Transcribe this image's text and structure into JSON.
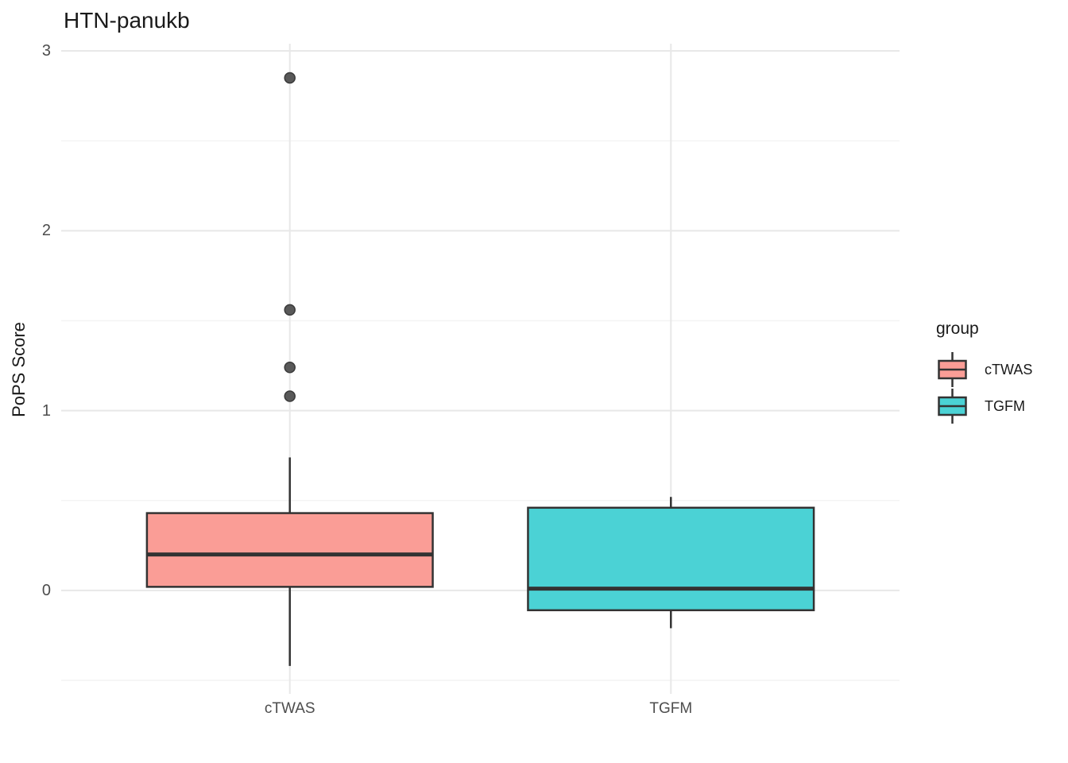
{
  "title": "HTN-panukb",
  "y_axis": {
    "label": "PoPS Score",
    "ticks": [
      "0",
      "1",
      "2",
      "3"
    ]
  },
  "x_axis": {
    "labels": [
      "cTWAS",
      "TGFM"
    ]
  },
  "legend": {
    "title": "group",
    "entries": [
      {
        "label": "cTWAS",
        "color": "#FA9D96"
      },
      {
        "label": "TGFM",
        "color": "#4BD2D5"
      }
    ]
  },
  "colors": {
    "ctwas_fill": "#FA9D96",
    "tgfm_fill": "#4BD2D5",
    "box_stroke": "#333333",
    "outlier_fill": "#595959",
    "outlier_stroke": "#3a3a3a",
    "grid_major": "#e8e8e8",
    "grid_minor": "#f4f4f4",
    "tick_text": "#4d4d4d",
    "text": "#1a1a1a",
    "background": "#ffffff"
  },
  "chart_data": {
    "type": "boxplot",
    "title": "HTN-panukb",
    "xlabel": "",
    "ylabel": "PoPS Score",
    "categories": [
      "cTWAS",
      "TGFM"
    ],
    "y_major_ticks": [
      0,
      1,
      2,
      3
    ],
    "y_minor_ticks": [
      -0.5,
      0.5,
      1.5,
      2.5
    ],
    "ylim": [
      -0.575,
      3.04
    ],
    "grid": true,
    "legend_title": "group",
    "legend_position": "right",
    "series": [
      {
        "name": "cTWAS",
        "fill": "#FA9D96",
        "whisker_low": -0.42,
        "q1": 0.02,
        "median": 0.2,
        "q3": 0.43,
        "whisker_high": 0.74,
        "outliers": [
          2.85,
          1.56,
          1.24,
          1.08
        ]
      },
      {
        "name": "TGFM",
        "fill": "#4BD2D5",
        "whisker_low": -0.21,
        "q1": -0.11,
        "median": 0.01,
        "q3": 0.46,
        "whisker_high": 0.52,
        "outliers": []
      }
    ]
  }
}
